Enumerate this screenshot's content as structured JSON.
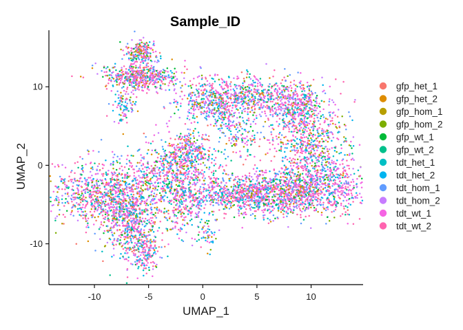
{
  "chart_data": {
    "type": "scatter",
    "title": "Sample_ID",
    "xlabel": "UMAP_1",
    "ylabel": "UMAP_2",
    "xlim": [
      -14.2,
      14.8
    ],
    "ylim": [
      -15.2,
      17.2
    ],
    "x_ticks": [
      -10,
      -5,
      0,
      5,
      10
    ],
    "y_ticks": [
      -10,
      0,
      10
    ],
    "x_tick_labels": [
      "-10",
      "-5",
      "0",
      "5",
      "10"
    ],
    "y_tick_labels": [
      "-10",
      "0",
      "10"
    ],
    "grid": false,
    "legend_position": "right",
    "series": [
      {
        "name": "gfp_het_1",
        "color": "#F8766D"
      },
      {
        "name": "gfp_het_2",
        "color": "#DE8C00"
      },
      {
        "name": "gfp_hom_1",
        "color": "#B79F00"
      },
      {
        "name": "gfp_hom_2",
        "color": "#7CAE00"
      },
      {
        "name": "gfp_wt_1",
        "color": "#00BA38"
      },
      {
        "name": "gfp_wt_2",
        "color": "#00C08B"
      },
      {
        "name": "tdt_het_1",
        "color": "#00BFC4"
      },
      {
        "name": "tdt_het_2",
        "color": "#00B4F0"
      },
      {
        "name": "tdt_hom_1",
        "color": "#619CFF"
      },
      {
        "name": "tdt_hom_2",
        "color": "#C77CFF"
      },
      {
        "name": "tdt_wt_1",
        "color": "#F564E3"
      },
      {
        "name": "tdt_wt_2",
        "color": "#FF64B0"
      }
    ],
    "clusters": [
      {
        "center": [
          -5.7,
          14.3
        ],
        "spread": [
          0.7,
          0.8
        ],
        "count": 220,
        "weights": [
          1,
          1,
          1,
          1,
          1,
          1,
          1,
          1,
          2,
          2,
          3,
          4
        ]
      },
      {
        "center": [
          -5.8,
          11.2
        ],
        "spread": [
          1.8,
          0.8
        ],
        "count": 520,
        "weights": [
          1,
          1,
          1,
          1,
          1,
          1,
          1,
          1,
          3,
          3,
          4,
          5
        ]
      },
      {
        "center": [
          -7.2,
          7.5
        ],
        "spread": [
          0.5,
          1.1
        ],
        "count": 90,
        "weights": [
          1,
          1,
          1,
          1,
          1,
          1,
          2,
          2,
          3,
          3,
          3,
          3
        ]
      },
      {
        "center": [
          -3.0,
          -1.0
        ],
        "spread": [
          2.0,
          2.3
        ],
        "count": 560,
        "weights": [
          1,
          1,
          1,
          1,
          1,
          1,
          2,
          2,
          3,
          3,
          4,
          5
        ]
      },
      {
        "center": [
          -1.0,
          2.0
        ],
        "spread": [
          1.2,
          1.5
        ],
        "count": 260,
        "weights": [
          1,
          1,
          1,
          1,
          1,
          1,
          2,
          2,
          3,
          3,
          4,
          5
        ]
      },
      {
        "center": [
          -9.2,
          -3.5
        ],
        "spread": [
          2.5,
          2.0
        ],
        "count": 900,
        "weights": [
          1,
          1,
          1,
          1,
          1,
          1,
          2,
          2,
          4,
          3,
          4,
          6
        ]
      },
      {
        "center": [
          -6.8,
          -7.3
        ],
        "spread": [
          1.3,
          2.2
        ],
        "count": 520,
        "weights": [
          1,
          1,
          1,
          1,
          1,
          1,
          2,
          2,
          4,
          3,
          4,
          6
        ]
      },
      {
        "center": [
          -5.3,
          -11.2
        ],
        "spread": [
          0.7,
          1.3
        ],
        "count": 180,
        "weights": [
          1,
          1,
          1,
          1,
          1,
          1,
          2,
          2,
          4,
          3,
          4,
          5
        ]
      },
      {
        "center": [
          -1.8,
          -5.5
        ],
        "spread": [
          1.1,
          1.9
        ],
        "count": 180,
        "weights": [
          1,
          1,
          1,
          1,
          1,
          1,
          2,
          2,
          3,
          3,
          4,
          4
        ]
      },
      {
        "center": [
          0.5,
          -8.5
        ],
        "spread": [
          0.4,
          1.1
        ],
        "count": 50,
        "weights": [
          1,
          1,
          1,
          1,
          1,
          1,
          2,
          2,
          3,
          3,
          4,
          4
        ]
      },
      {
        "center": [
          4.5,
          -3.7
        ],
        "spread": [
          3.2,
          1.3
        ],
        "count": 1050,
        "weights": [
          1,
          1,
          1,
          1,
          1,
          1,
          2,
          2,
          4,
          4,
          6,
          7
        ]
      },
      {
        "center": [
          10.0,
          -2.8
        ],
        "spread": [
          2.7,
          1.8
        ],
        "count": 900,
        "weights": [
          1,
          1,
          1,
          1,
          1,
          1,
          2,
          2,
          4,
          4,
          6,
          7
        ]
      },
      {
        "center": [
          10.0,
          2.8
        ],
        "spread": [
          1.8,
          2.2
        ],
        "count": 500,
        "weights": [
          1,
          1,
          1,
          1,
          1,
          1,
          2,
          2,
          3,
          3,
          5,
          6
        ]
      },
      {
        "center": [
          5.3,
          8.5
        ],
        "spread": [
          2.8,
          1.5
        ],
        "count": 600,
        "weights": [
          1,
          1,
          1,
          1,
          1,
          1,
          2,
          2,
          3,
          3,
          5,
          6
        ]
      },
      {
        "center": [
          1.0,
          8.2
        ],
        "spread": [
          1.7,
          1.4
        ],
        "count": 360,
        "weights": [
          1,
          1,
          1,
          1,
          1,
          1,
          2,
          2,
          3,
          3,
          5,
          6
        ]
      },
      {
        "center": [
          8.9,
          7.2
        ],
        "spread": [
          1.0,
          1.6
        ],
        "count": 280,
        "weights": [
          1,
          1,
          1,
          1,
          1,
          1,
          2,
          2,
          3,
          3,
          5,
          6
        ]
      },
      {
        "center": [
          3.7,
          3.4
        ],
        "spread": [
          0.8,
          1.0
        ],
        "count": 90,
        "weights": [
          1,
          1,
          1,
          1,
          1,
          2,
          2,
          2,
          3,
          3,
          3,
          3
        ]
      },
      {
        "center": [
          2.2,
          5.6
        ],
        "spread": [
          0.6,
          0.8
        ],
        "count": 60,
        "weights": [
          1,
          1,
          1,
          1,
          1,
          2,
          2,
          2,
          3,
          3,
          3,
          3
        ]
      }
    ]
  }
}
